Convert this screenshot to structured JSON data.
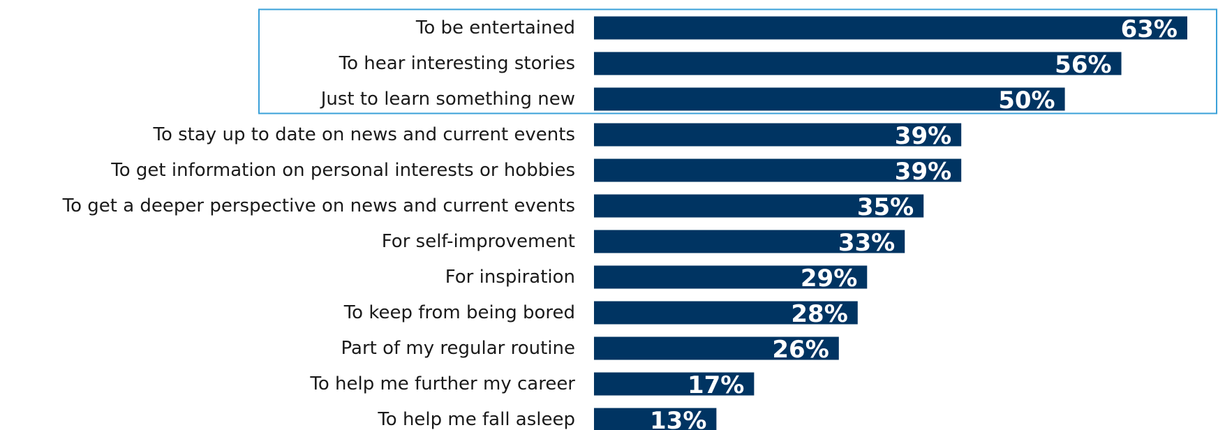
{
  "colors": {
    "bar": "#003462",
    "highlight_border": "#3aa0d8",
    "label_text": "#1a1a1a",
    "value_text": "#ffffff"
  },
  "chart_data": {
    "type": "bar",
    "orientation": "horizontal",
    "title": "",
    "xlabel": "",
    "ylabel": "",
    "xlim": [
      0,
      63
    ],
    "grid": false,
    "legend": "none",
    "value_suffix": "%",
    "highlight": {
      "categories": [
        "To be entertained",
        "To hear interesting stories",
        "Just to learn something new"
      ],
      "style": "outlined box"
    },
    "categories": [
      "To be entertained",
      "To hear interesting stories",
      "Just to learn something new",
      "To stay up to date on news and current events",
      "To get information on personal interests or hobbies",
      "To get a deeper perspective on news and current events",
      "For self-improvement",
      "For inspiration",
      "To keep from being bored",
      "Part of my regular routine",
      "To help me further my career",
      "To help me fall asleep"
    ],
    "values": [
      63,
      56,
      50,
      39,
      39,
      35,
      33,
      29,
      28,
      26,
      17,
      13
    ],
    "value_labels": [
      "63%",
      "56%",
      "50%",
      "39%",
      "39%",
      "35%",
      "33%",
      "29%",
      "28%",
      "26%",
      "17%",
      "13%"
    ]
  }
}
